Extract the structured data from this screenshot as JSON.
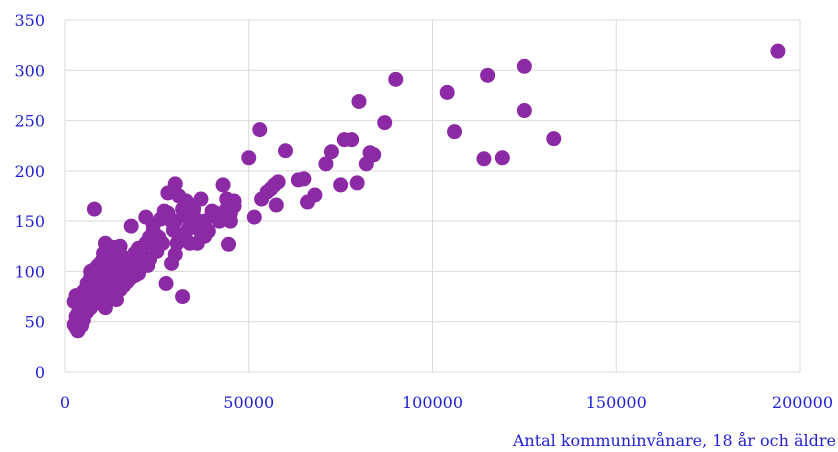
{
  "chart_data": {
    "type": "scatter",
    "title": "",
    "xlabel": "Antal kommuninvånare, 18 år och äldre",
    "ylabel": "",
    "xlim": [
      0,
      200000
    ],
    "ylim": [
      0,
      350
    ],
    "xticks": [
      0,
      50000,
      100000,
      150000,
      200000
    ],
    "yticks": [
      0,
      50,
      100,
      150,
      200,
      250,
      300,
      350
    ],
    "grid": true,
    "legend": "none",
    "marker_color": "#8b2aa4",
    "series": [
      {
        "points": [
          [
            194000,
            319
          ],
          [
            125000,
            304
          ],
          [
            115000,
            295
          ],
          [
            104000,
            278
          ],
          [
            90000,
            291
          ],
          [
            80000,
            269
          ],
          [
            125000,
            260
          ],
          [
            106000,
            239
          ],
          [
            133000,
            232
          ],
          [
            114000,
            212
          ],
          [
            119000,
            213
          ],
          [
            87000,
            248
          ],
          [
            78000,
            231
          ],
          [
            76000,
            231
          ],
          [
            72500,
            219
          ],
          [
            71000,
            207
          ],
          [
            83000,
            218
          ],
          [
            84000,
            216
          ],
          [
            82000,
            207
          ],
          [
            75000,
            186
          ],
          [
            79500,
            188
          ],
          [
            68000,
            176
          ],
          [
            66000,
            169
          ],
          [
            65000,
            192
          ],
          [
            63500,
            191
          ],
          [
            60000,
            220
          ],
          [
            53000,
            241
          ],
          [
            50000,
            213
          ],
          [
            57000,
            186
          ],
          [
            58000,
            189
          ],
          [
            56000,
            182
          ],
          [
            55000,
            179
          ],
          [
            53500,
            172
          ],
          [
            57500,
            166
          ],
          [
            51500,
            154
          ],
          [
            46000,
            170
          ],
          [
            44000,
            172
          ],
          [
            43000,
            186
          ],
          [
            45000,
            150
          ],
          [
            44500,
            127
          ],
          [
            40000,
            160
          ],
          [
            38500,
            142
          ],
          [
            37000,
            139
          ],
          [
            35000,
            162
          ],
          [
            34000,
            128
          ],
          [
            33000,
            170
          ],
          [
            31000,
            175
          ],
          [
            30000,
            187
          ],
          [
            29000,
            150
          ],
          [
            28000,
            178
          ],
          [
            29500,
            141
          ],
          [
            30500,
            128
          ],
          [
            30000,
            117
          ],
          [
            29000,
            108
          ],
          [
            27500,
            88
          ],
          [
            32000,
            75
          ],
          [
            8000,
            162
          ],
          [
            18000,
            145
          ],
          [
            22000,
            154
          ],
          [
            24000,
            140
          ],
          [
            26000,
            130
          ],
          [
            25000,
            120
          ],
          [
            23000,
            112
          ],
          [
            21000,
            108
          ],
          [
            20000,
            123
          ],
          [
            19000,
            118
          ],
          [
            18000,
            100
          ],
          [
            17000,
            95
          ],
          [
            16000,
            92
          ],
          [
            15000,
            125
          ],
          [
            14000,
            88
          ],
          [
            13000,
            86
          ],
          [
            12000,
            110
          ],
          [
            11000,
            128
          ],
          [
            10500,
            118
          ],
          [
            10000,
            104
          ],
          [
            9500,
            98
          ],
          [
            9000,
            96
          ],
          [
            8500,
            92
          ],
          [
            8000,
            90
          ],
          [
            7500,
            85
          ],
          [
            7000,
            82
          ],
          [
            6500,
            76
          ],
          [
            6000,
            72
          ],
          [
            5500,
            70
          ],
          [
            5000,
            66
          ],
          [
            4500,
            62
          ],
          [
            4000,
            60
          ],
          [
            3500,
            58
          ],
          [
            3000,
            55
          ],
          [
            2500,
            47
          ],
          [
            3000,
            44
          ],
          [
            3500,
            41
          ],
          [
            4500,
            46
          ],
          [
            5000,
            52
          ],
          [
            6000,
            60
          ],
          [
            7000,
            64
          ],
          [
            8000,
            68
          ],
          [
            9000,
            72
          ],
          [
            10000,
            76
          ],
          [
            11000,
            80
          ],
          [
            12000,
            84
          ],
          [
            13000,
            88
          ],
          [
            14000,
            92
          ],
          [
            15000,
            96
          ],
          [
            16000,
            100
          ],
          [
            17000,
            104
          ],
          [
            18000,
            108
          ],
          [
            12500,
            100
          ],
          [
            13500,
            105
          ],
          [
            14500,
            110
          ],
          [
            15500,
            115
          ],
          [
            11500,
            95
          ],
          [
            10500,
            90
          ],
          [
            9500,
            85
          ],
          [
            8500,
            80
          ],
          [
            7500,
            75
          ],
          [
            6500,
            70
          ],
          [
            5500,
            65
          ],
          [
            4500,
            62
          ],
          [
            9000,
            100
          ],
          [
            10000,
            110
          ],
          [
            11000,
            118
          ],
          [
            12000,
            122
          ],
          [
            13000,
            124
          ],
          [
            14000,
            118
          ],
          [
            15000,
            112
          ],
          [
            16000,
            108
          ],
          [
            17000,
            112
          ],
          [
            19000,
            115
          ],
          [
            20000,
            110
          ],
          [
            21000,
            118
          ],
          [
            22000,
            128
          ],
          [
            23000,
            134
          ],
          [
            24000,
            146
          ],
          [
            26000,
            152
          ],
          [
            27000,
            160
          ],
          [
            28000,
            158
          ],
          [
            30000,
            150
          ],
          [
            32000,
            162
          ],
          [
            33000,
            158
          ],
          [
            34000,
            150
          ],
          [
            35000,
            155
          ],
          [
            36000,
            148
          ],
          [
            37000,
            172
          ],
          [
            38000,
            135
          ],
          [
            39000,
            140
          ],
          [
            41000,
            158
          ],
          [
            42000,
            150
          ],
          [
            44000,
            162
          ],
          [
            45000,
            158
          ],
          [
            46000,
            165
          ],
          [
            8000,
            102
          ],
          [
            9000,
            106
          ],
          [
            10000,
            92
          ],
          [
            11000,
            88
          ],
          [
            12000,
            74
          ],
          [
            13000,
            78
          ],
          [
            14000,
            72
          ],
          [
            15000,
            82
          ],
          [
            16000,
            86
          ],
          [
            17000,
            90
          ],
          [
            18000,
            94
          ],
          [
            19000,
            96
          ],
          [
            20000,
            98
          ],
          [
            6000,
            88
          ],
          [
            7000,
            94
          ],
          [
            8000,
            98
          ],
          [
            5000,
            80
          ],
          [
            4000,
            74
          ],
          [
            3000,
            76
          ],
          [
            2500,
            70
          ],
          [
            7000,
            100
          ],
          [
            11000,
            64
          ],
          [
            9500,
            70
          ],
          [
            12500,
            90
          ],
          [
            13500,
            96
          ],
          [
            14500,
            100
          ],
          [
            15500,
            102
          ],
          [
            16500,
            98
          ],
          [
            20500,
            104
          ],
          [
            21500,
            112
          ],
          [
            22500,
            106
          ],
          [
            24500,
            130
          ],
          [
            25500,
            134
          ],
          [
            26500,
            128
          ],
          [
            31000,
            136
          ],
          [
            33500,
            142
          ],
          [
            36000,
            128
          ],
          [
            38000,
            150
          ]
        ]
      }
    ]
  }
}
